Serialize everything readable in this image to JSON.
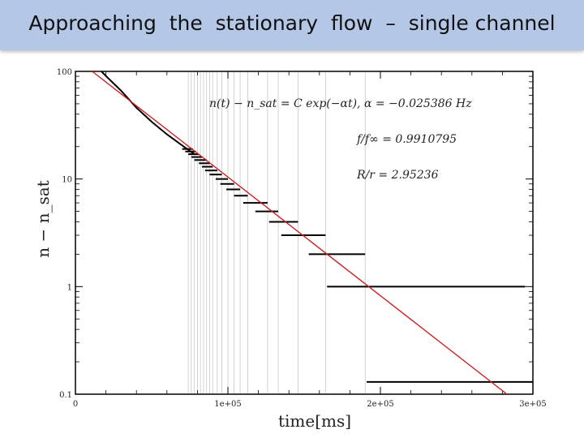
{
  "slide": {
    "title": "Approaching  the  stationary  flow  –  single channel"
  },
  "chart_data": {
    "type": "scatter",
    "title": "",
    "xlabel": "time[ms]",
    "ylabel": "n − n_sat",
    "xlim": [
      0,
      300000
    ],
    "ylim": [
      0.1,
      100
    ],
    "yscale": "log",
    "x_ticks": [
      {
        "value": 0,
        "label": "0"
      },
      {
        "value": 100000,
        "label": "1e+05"
      },
      {
        "value": 200000,
        "label": "2e+05"
      },
      {
        "value": 300000,
        "label": "3e+05"
      }
    ],
    "y_ticks": [
      {
        "value": 100,
        "label": "100"
      },
      {
        "value": 10,
        "label": "10"
      },
      {
        "value": 1,
        "label": "1"
      },
      {
        "value": 0.1,
        "label": "0.1"
      }
    ],
    "grid": "vertical lines at step boundaries",
    "colors": {
      "data": "#000000",
      "fit": "#cc2222",
      "grid": "#c8c8c8",
      "title_bg": "#b4c7e7"
    },
    "fit": {
      "color": "red",
      "points": [
        [
          11000,
          100
        ],
        [
          283000,
          0.1
        ]
      ]
    },
    "decay_curve": [
      [
        17000,
        100
      ],
      [
        22000,
        85
      ],
      [
        30000,
        66
      ],
      [
        40000,
        46
      ],
      [
        50000,
        34
      ],
      [
        60000,
        26
      ],
      [
        70000,
        20.5
      ],
      [
        78000,
        17
      ]
    ],
    "steps": [
      {
        "x0": 70000,
        "x1": 77000,
        "y": 19
      },
      {
        "x0": 72000,
        "x1": 79000,
        "y": 18
      },
      {
        "x0": 74000,
        "x1": 81000,
        "y": 17
      },
      {
        "x0": 76000,
        "x1": 83000,
        "y": 16
      },
      {
        "x0": 78000,
        "x1": 86000,
        "y": 15
      },
      {
        "x0": 81000,
        "x1": 88000,
        "y": 14
      },
      {
        "x0": 83000,
        "x1": 90000,
        "y": 13
      },
      {
        "x0": 85000,
        "x1": 93000,
        "y": 12
      },
      {
        "x0": 88000,
        "x1": 96000,
        "y": 11
      },
      {
        "x0": 92000,
        "x1": 100000,
        "y": 10
      },
      {
        "x0": 95000,
        "x1": 104000,
        "y": 9
      },
      {
        "x0": 99000,
        "x1": 108000,
        "y": 8
      },
      {
        "x0": 104000,
        "x1": 113000,
        "y": 7
      },
      {
        "x0": 110000,
        "x1": 126000,
        "y": 6
      },
      {
        "x0": 118000,
        "x1": 133000,
        "y": 5
      },
      {
        "x0": 127000,
        "x1": 146000,
        "y": 4
      },
      {
        "x0": 135000,
        "x1": 164000,
        "y": 3
      },
      {
        "x0": 153000,
        "x1": 190000,
        "y": 2
      },
      {
        "x0": 165000,
        "x1": 295000,
        "y": 1
      },
      {
        "x0": 191000,
        "x1": 305000,
        "y": 0.13
      }
    ],
    "grid_x": [
      74000,
      76000,
      78000,
      80000,
      82000,
      84000,
      86000,
      88000,
      90000,
      93000,
      96000,
      100000,
      104000,
      108000,
      113000,
      126000,
      133000,
      146000,
      164000,
      190000,
      305000
    ],
    "annotations": [
      {
        "id": "fit_eq",
        "text": "n(t) − n_sat = C exp(−αt),     α = −0.025386 Hz"
      },
      {
        "id": "f_ratio",
        "text": "f/f∞ = 0.9910795"
      },
      {
        "id": "r_ratio",
        "text": "R/r = 2.95236"
      }
    ]
  }
}
